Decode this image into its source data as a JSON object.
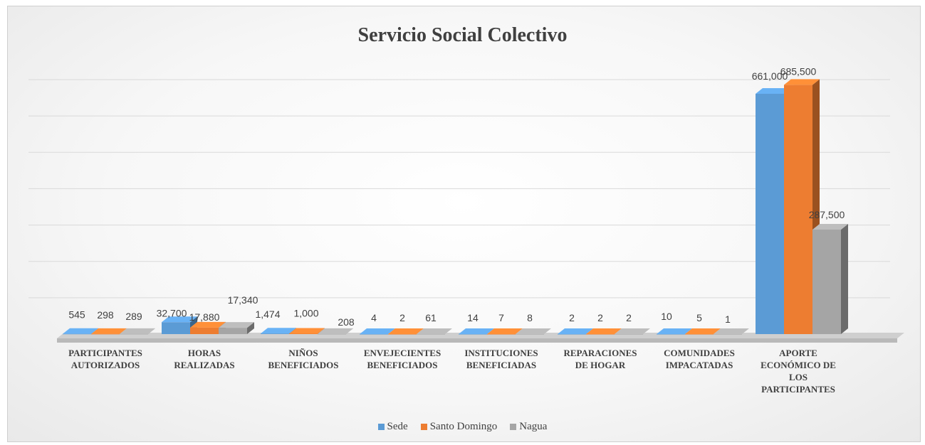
{
  "chart_data": {
    "type": "bar",
    "title": "Servicio Social Colectivo",
    "categories": [
      [
        "PARTICIPANTES",
        "AUTORIZADOS"
      ],
      [
        "HORAS",
        "REALIZADAS"
      ],
      [
        "NIÑOS",
        "BENEFICIADOS"
      ],
      [
        "ENVEJECIENTES",
        "BENEFICIADOS"
      ],
      [
        "INSTITUCIONES",
        "BENEFICIADAS"
      ],
      [
        "REPARACIONES",
        "DE HOGAR"
      ],
      [
        "COMUNIDADES",
        "IMPACATADAS"
      ],
      [
        "APORTE",
        "ECONÓMICO DE",
        "LOS",
        "PARTICIPANTES"
      ]
    ],
    "series": [
      {
        "name": "Sede",
        "values": [
          545,
          32700,
          1474,
          4,
          14,
          2,
          10,
          661000
        ],
        "labels": [
          "545",
          "32,700",
          "1,474",
          "4",
          "14",
          "2",
          "10",
          "661,000"
        ],
        "color": "#5b9bd5"
      },
      {
        "name": "Santo Domingo",
        "values": [
          298,
          17880,
          1000,
          2,
          7,
          2,
          5,
          685500
        ],
        "labels": [
          "298",
          "17,880",
          "1,000",
          "2",
          "7",
          "2",
          "5",
          "685,500"
        ],
        "color": "#ed7d31"
      },
      {
        "name": "Nagua",
        "values": [
          289,
          17340,
          208,
          61,
          8,
          2,
          1,
          287500
        ],
        "labels": [
          "289",
          "17,340",
          "208",
          "61",
          "8",
          "2",
          "1",
          "287,500"
        ],
        "color": "#a5a5a5"
      }
    ],
    "ylim": [
      0,
      700000
    ],
    "grid": true,
    "legend_position": "bottom",
    "style": "3d-clustered-column"
  }
}
